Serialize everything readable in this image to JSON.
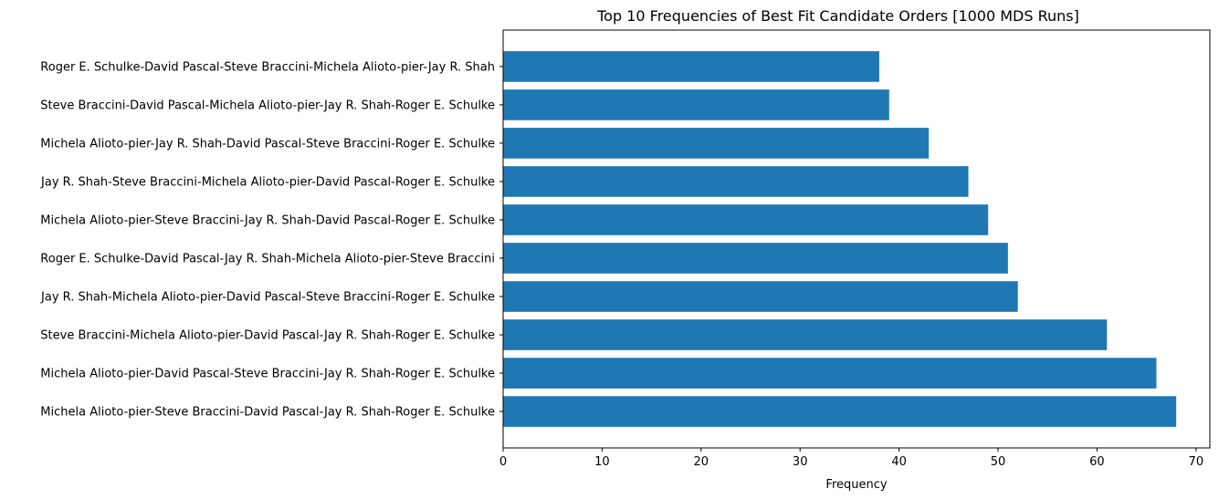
{
  "chart_data": {
    "type": "bar",
    "orientation": "horizontal",
    "title": "Top 10 Frequencies of Best Fit Candidate Orders [1000 MDS Runs]",
    "xlabel": "Frequency",
    "ylabel": "",
    "xlim": [
      0,
      71.4
    ],
    "xticks": [
      0,
      10,
      20,
      30,
      40,
      50,
      60,
      70
    ],
    "grid": false,
    "legend": "none",
    "bar_color": "#1f77b4",
    "categories": [
      "Michela Alioto-pier-Steve Braccini-David Pascal-Jay R. Shah-Roger E. Schulke",
      "Michela Alioto-pier-David Pascal-Steve Braccini-Jay R. Shah-Roger E. Schulke",
      "Steve Braccini-Michela Alioto-pier-David Pascal-Jay R. Shah-Roger E. Schulke",
      "Jay R. Shah-Michela Alioto-pier-David Pascal-Steve Braccini-Roger E. Schulke",
      "Roger E. Schulke-David Pascal-Jay R. Shah-Michela Alioto-pier-Steve Braccini",
      "Michela Alioto-pier-Steve Braccini-Jay R. Shah-David Pascal-Roger E. Schulke",
      "Jay R. Shah-Steve Braccini-Michela Alioto-pier-David Pascal-Roger E. Schulke",
      "Michela Alioto-pier-Jay R. Shah-David Pascal-Steve Braccini-Roger E. Schulke",
      "Steve Braccini-David Pascal-Michela Alioto-pier-Jay R. Shah-Roger E. Schulke",
      "Roger E. Schulke-David Pascal-Steve Braccini-Michela Alioto-pier-Jay R. Shah"
    ],
    "values": [
      68,
      66,
      61,
      52,
      51,
      49,
      47,
      43,
      39,
      38
    ]
  }
}
